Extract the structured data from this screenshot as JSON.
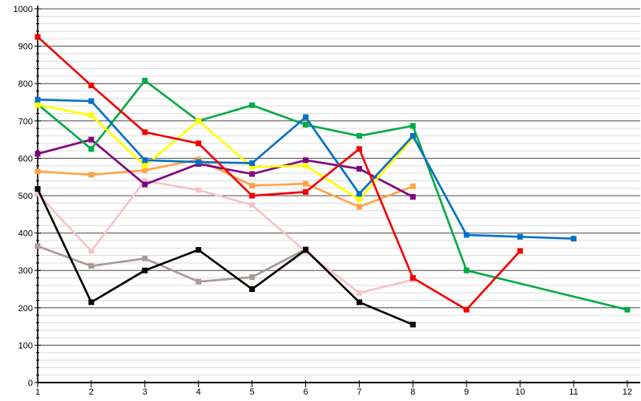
{
  "chart_data": {
    "type": "line",
    "title": "",
    "xlabel": "",
    "ylabel": "",
    "xlim": [
      1,
      12
    ],
    "ylim": [
      0,
      1000
    ],
    "x_ticks": [
      1,
      2,
      3,
      4,
      5,
      6,
      7,
      8,
      9,
      10,
      11,
      12
    ],
    "y_ticks": [
      0,
      100,
      200,
      300,
      400,
      500,
      600,
      700,
      800,
      900,
      1000
    ],
    "grid": {
      "minor_step": 20,
      "major_step": 100,
      "vertical_gridlines": false
    },
    "legend": "none",
    "marker": "square",
    "colors": {
      "axis": "#000000",
      "major_grid": "#4a4a4a",
      "minor_grid": "#dcdcdc",
      "background": "#ffffff"
    },
    "series": [
      {
        "name": "gray",
        "color": "#a79a97",
        "points": [
          [
            1,
            365
          ],
          [
            2,
            312
          ],
          [
            3,
            332
          ],
          [
            4,
            270
          ],
          [
            5,
            282
          ],
          [
            6,
            357
          ]
        ]
      },
      {
        "name": "pink",
        "color": "#f7c3ca",
        "points": [
          [
            1,
            505
          ],
          [
            2,
            352
          ],
          [
            3,
            540
          ],
          [
            4,
            515
          ],
          [
            5,
            475
          ],
          [
            6,
            350
          ],
          [
            7,
            240
          ],
          [
            8,
            275
          ]
        ]
      },
      {
        "name": "orange",
        "color": "#ffa448",
        "points": [
          [
            1,
            565
          ],
          [
            2,
            556
          ],
          [
            3,
            568
          ],
          [
            4,
            597
          ],
          [
            5,
            527
          ],
          [
            6,
            532
          ],
          [
            7,
            470
          ],
          [
            8,
            525
          ]
        ]
      },
      {
        "name": "purple",
        "color": "#800080",
        "points": [
          [
            1,
            612
          ],
          [
            2,
            650
          ],
          [
            3,
            530
          ],
          [
            4,
            585
          ],
          [
            5,
            558
          ],
          [
            6,
            595
          ],
          [
            7,
            572
          ],
          [
            8,
            497
          ]
        ]
      },
      {
        "name": "green",
        "color": "#00ab44",
        "points": [
          [
            1,
            745
          ],
          [
            2,
            625
          ],
          [
            3,
            808
          ],
          [
            4,
            700
          ],
          [
            5,
            742
          ],
          [
            6,
            690
          ],
          [
            7,
            660
          ],
          [
            8,
            687
          ],
          [
            9,
            300
          ],
          [
            12,
            195
          ]
        ]
      },
      {
        "name": "yellow",
        "color": "#ffff00",
        "points": [
          [
            1,
            743
          ],
          [
            2,
            715
          ],
          [
            3,
            580
          ],
          [
            4,
            700
          ],
          [
            5,
            577
          ],
          [
            6,
            580
          ],
          [
            7,
            490
          ],
          [
            8,
            655
          ]
        ]
      },
      {
        "name": "blue",
        "color": "#0070c6",
        "points": [
          [
            1,
            757
          ],
          [
            2,
            753
          ],
          [
            3,
            595
          ],
          [
            4,
            590
          ],
          [
            5,
            587
          ],
          [
            6,
            710
          ],
          [
            7,
            505
          ],
          [
            8,
            660
          ],
          [
            9,
            395
          ],
          [
            10,
            390
          ],
          [
            11,
            385
          ]
        ]
      },
      {
        "name": "red",
        "color": "#f20000",
        "points": [
          [
            1,
            925
          ],
          [
            2,
            795
          ],
          [
            3,
            670
          ],
          [
            4,
            640
          ],
          [
            5,
            500
          ],
          [
            6,
            510
          ],
          [
            7,
            625
          ],
          [
            8,
            280
          ],
          [
            9,
            195
          ],
          [
            10,
            352
          ]
        ]
      },
      {
        "name": "black",
        "color": "#000000",
        "points": [
          [
            1,
            518
          ],
          [
            2,
            215
          ],
          [
            3,
            300
          ],
          [
            4,
            355
          ],
          [
            5,
            250
          ],
          [
            6,
            355
          ],
          [
            7,
            215
          ],
          [
            8,
            155
          ]
        ]
      }
    ]
  }
}
